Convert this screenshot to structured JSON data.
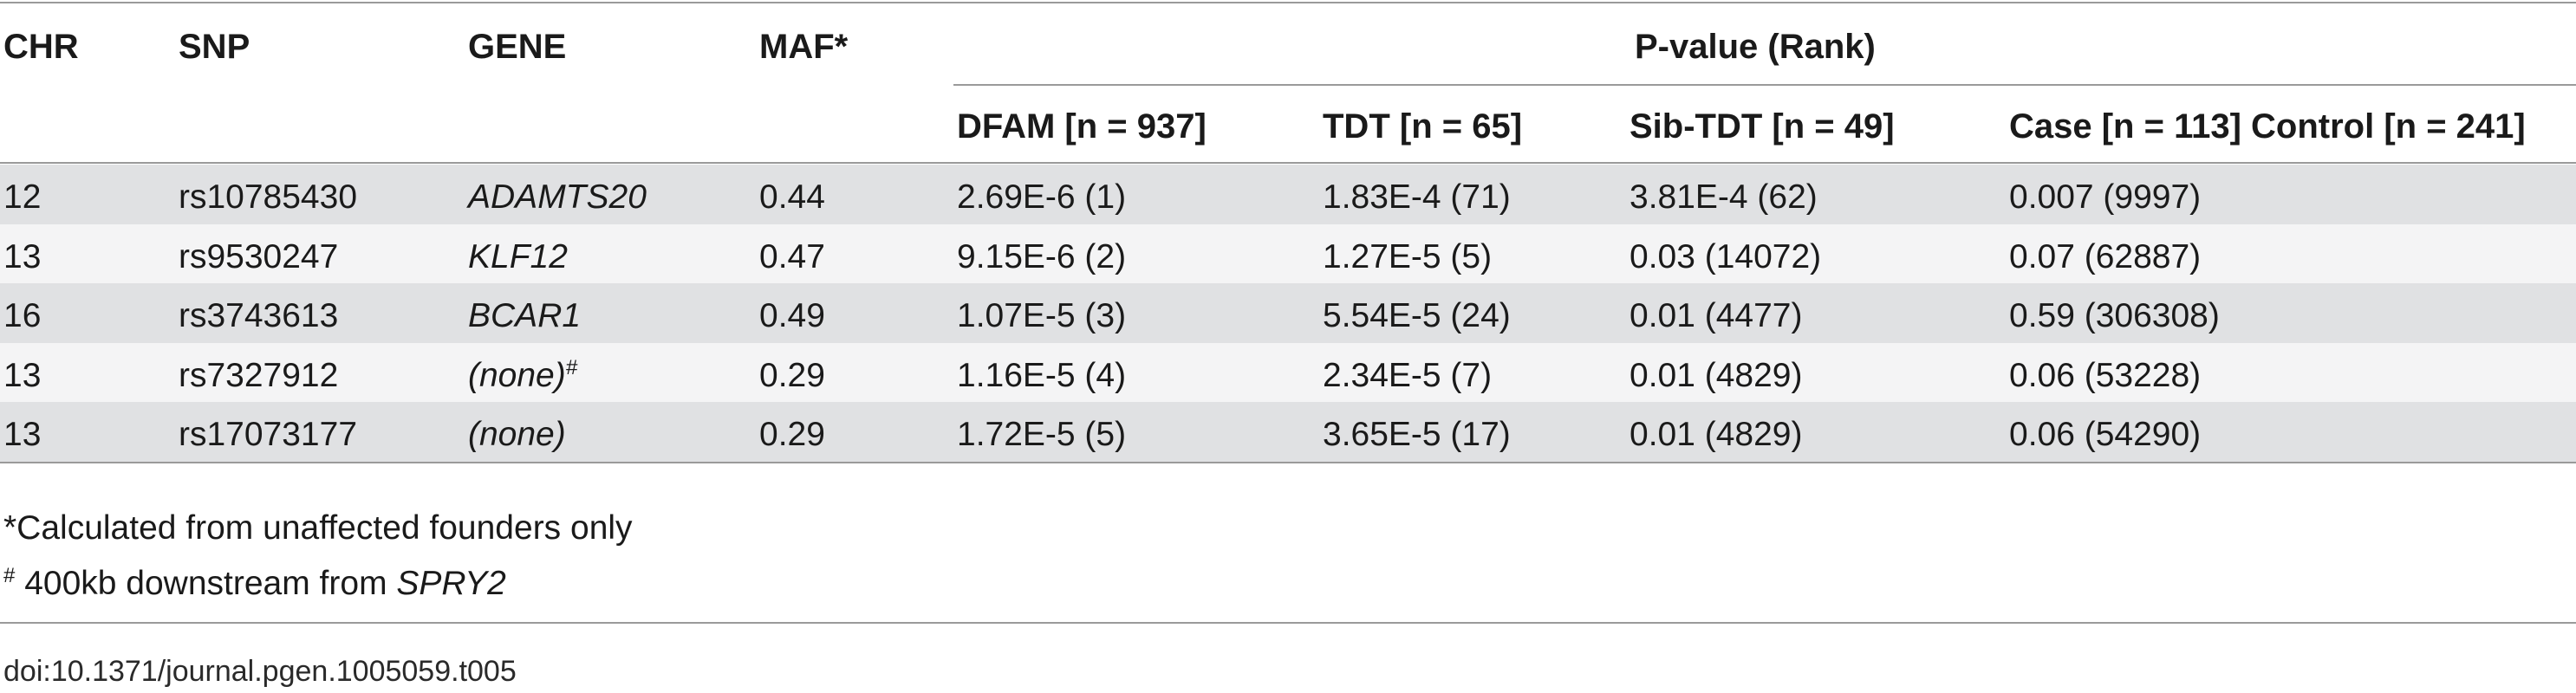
{
  "table": {
    "headers": {
      "chr": "CHR",
      "snp": "SNP",
      "gene": "GENE",
      "maf": "MAF*",
      "pvalue_group": "P-value (Rank)",
      "dfam": "DFAM [n = 937]",
      "tdt": "TDT [n = 65]",
      "sib_tdt": "Sib-TDT [n = 49]",
      "case_control": "Case [n = 113] Control [n = 241]"
    },
    "rows": [
      {
        "chr": "12",
        "snp": "rs10785430",
        "gene": "ADAMTS20",
        "gene_sup": "",
        "maf": "0.44",
        "dfam": "2.69E-6 (1)",
        "tdt": "1.83E-4 (71)",
        "sib_tdt": "3.81E-4 (62)",
        "case_control": "0.007 (9997)"
      },
      {
        "chr": "13",
        "snp": "rs9530247",
        "gene": "KLF12",
        "gene_sup": "",
        "maf": "0.47",
        "dfam": "9.15E-6 (2)",
        "tdt": "1.27E-5 (5)",
        "sib_tdt": "0.03 (14072)",
        "case_control": "0.07 (62887)"
      },
      {
        "chr": "16",
        "snp": "rs3743613",
        "gene": "BCAR1",
        "gene_sup": "",
        "maf": "0.49",
        "dfam": "1.07E-5 (3)",
        "tdt": "5.54E-5 (24)",
        "sib_tdt": "0.01 (4477)",
        "case_control": "0.59 (306308)"
      },
      {
        "chr": "13",
        "snp": "rs7327912",
        "gene": "(none)",
        "gene_sup": "#",
        "maf": "0.29",
        "dfam": "1.16E-5 (4)",
        "tdt": "2.34E-5 (7)",
        "sib_tdt": "0.01 (4829)",
        "case_control": "0.06 (53228)"
      },
      {
        "chr": "13",
        "snp": "rs17073177",
        "gene": "(none)",
        "gene_sup": "",
        "maf": "0.29",
        "dfam": "1.72E-5 (5)",
        "tdt": "3.65E-5 (17)",
        "sib_tdt": "0.01 (4829)",
        "case_control": "0.06 (54290)"
      }
    ]
  },
  "footnotes": {
    "maf_note": "*Calculated from unaffected founders only",
    "none_mark": "#",
    "none_note": "400kb downstream from ",
    "none_gene": "SPRY2"
  },
  "doi": "doi:10.1371/journal.pgen.1005059.t005",
  "colors": {
    "row_shaded": "#e0e1e3",
    "row_light": "#f4f4f5",
    "rule": "#9a9a9a"
  }
}
